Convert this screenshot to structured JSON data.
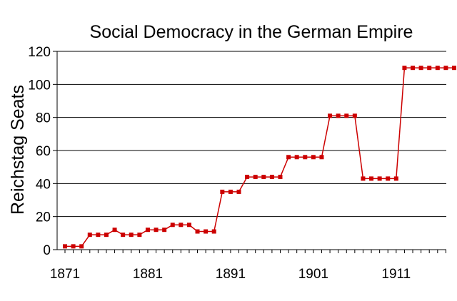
{
  "chart_data": {
    "type": "line",
    "title": "Social Democracy in the German Empire",
    "xlabel": "",
    "ylabel": "Reichstag Seats",
    "xlim": [
      1871,
      1918
    ],
    "ylim": [
      0,
      120
    ],
    "yticks": [
      0,
      20,
      40,
      60,
      80,
      100,
      120
    ],
    "xtick_labels": [
      "1871",
      "1881",
      "1891",
      "1901",
      "1911"
    ],
    "grid": "horizontal",
    "legend": "none",
    "colors": {
      "line": "#cc0000",
      "marker": "#cc0000",
      "grid": "#000000",
      "axis": "#000000"
    },
    "series": [
      {
        "x": [
          1871,
          1872,
          1873,
          1874,
          1875,
          1876,
          1877,
          1878,
          1879,
          1880,
          1881,
          1882,
          1883,
          1884,
          1885,
          1886,
          1887,
          1888,
          1889,
          1890,
          1891,
          1892,
          1893,
          1894,
          1895,
          1896,
          1897,
          1898,
          1899,
          1900,
          1901,
          1902,
          1903,
          1904,
          1905,
          1906,
          1907,
          1908,
          1909,
          1910,
          1911,
          1912,
          1913,
          1914,
          1915,
          1916,
          1917,
          1918
        ],
        "values": [
          2,
          2,
          2,
          9,
          9,
          9,
          12,
          9,
          9,
          9,
          12,
          12,
          12,
          15,
          15,
          15,
          11,
          11,
          11,
          35,
          35,
          35,
          44,
          44,
          44,
          44,
          44,
          56,
          56,
          56,
          56,
          56,
          81,
          81,
          81,
          81,
          43,
          43,
          43,
          43,
          43,
          110,
          110,
          110,
          110,
          110,
          110,
          110
        ]
      }
    ]
  }
}
